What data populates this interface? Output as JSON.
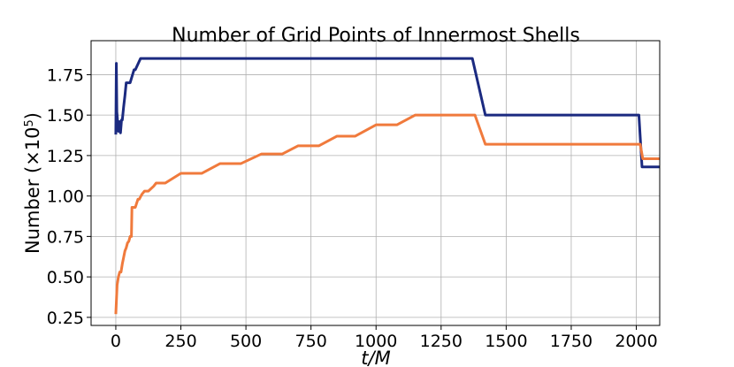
{
  "chart_data": {
    "type": "line",
    "title": "Number of Grid Points of Innermost Shells",
    "xlabel": "t/M",
    "ylabel_main": "Number (×10",
    "ylabel_exp": "5",
    "ylabel_close": ")",
    "xlim": [
      -95,
      2090
    ],
    "ylim": [
      0.2,
      1.96
    ],
    "xticks": [
      0,
      250,
      500,
      750,
      1000,
      1250,
      1500,
      1750,
      2000
    ],
    "yticks": [
      0.25,
      0.5,
      0.75,
      1.0,
      1.25,
      1.5,
      1.75
    ],
    "xtick_labels": [
      "0",
      "250",
      "500",
      "750",
      "1000",
      "1250",
      "1500",
      "1750",
      "2000"
    ],
    "ytick_labels": [
      "0.25",
      "0.50",
      "0.75",
      "1.00",
      "1.25",
      "1.50",
      "1.75"
    ],
    "grid": true,
    "series": [
      {
        "color": "#1b2a80",
        "x": [
          0,
          2,
          4,
          7,
          10,
          14,
          18,
          22,
          25,
          30,
          35,
          40,
          45,
          50,
          55,
          70,
          75,
          95,
          110,
          1370,
          1420,
          2010,
          2022,
          2030,
          2090
        ],
        "y": [
          1.38,
          1.82,
          1.52,
          1.46,
          1.4,
          1.46,
          1.39,
          1.47,
          1.47,
          1.55,
          1.62,
          1.7,
          1.7,
          1.7,
          1.7,
          1.78,
          1.78,
          1.85,
          1.85,
          1.85,
          1.5,
          1.5,
          1.18,
          1.18,
          1.18
        ]
      },
      {
        "color": "#f07a3c",
        "x": [
          0,
          5,
          10,
          15,
          20,
          25,
          30,
          35,
          40,
          45,
          50,
          55,
          60,
          62,
          70,
          75,
          85,
          90,
          100,
          110,
          125,
          145,
          155,
          190,
          250,
          330,
          400,
          480,
          560,
          640,
          700,
          780,
          850,
          920,
          1000,
          1080,
          1150,
          1380,
          1420,
          2015,
          2025,
          2090
        ],
        "y": [
          0.27,
          0.45,
          0.5,
          0.53,
          0.53,
          0.58,
          0.62,
          0.66,
          0.68,
          0.71,
          0.72,
          0.75,
          0.75,
          0.93,
          0.93,
          0.93,
          0.98,
          0.98,
          1.01,
          1.03,
          1.03,
          1.06,
          1.08,
          1.08,
          1.14,
          1.14,
          1.2,
          1.2,
          1.26,
          1.26,
          1.31,
          1.31,
          1.37,
          1.37,
          1.44,
          1.44,
          1.5,
          1.5,
          1.32,
          1.32,
          1.23,
          1.23
        ]
      }
    ]
  }
}
